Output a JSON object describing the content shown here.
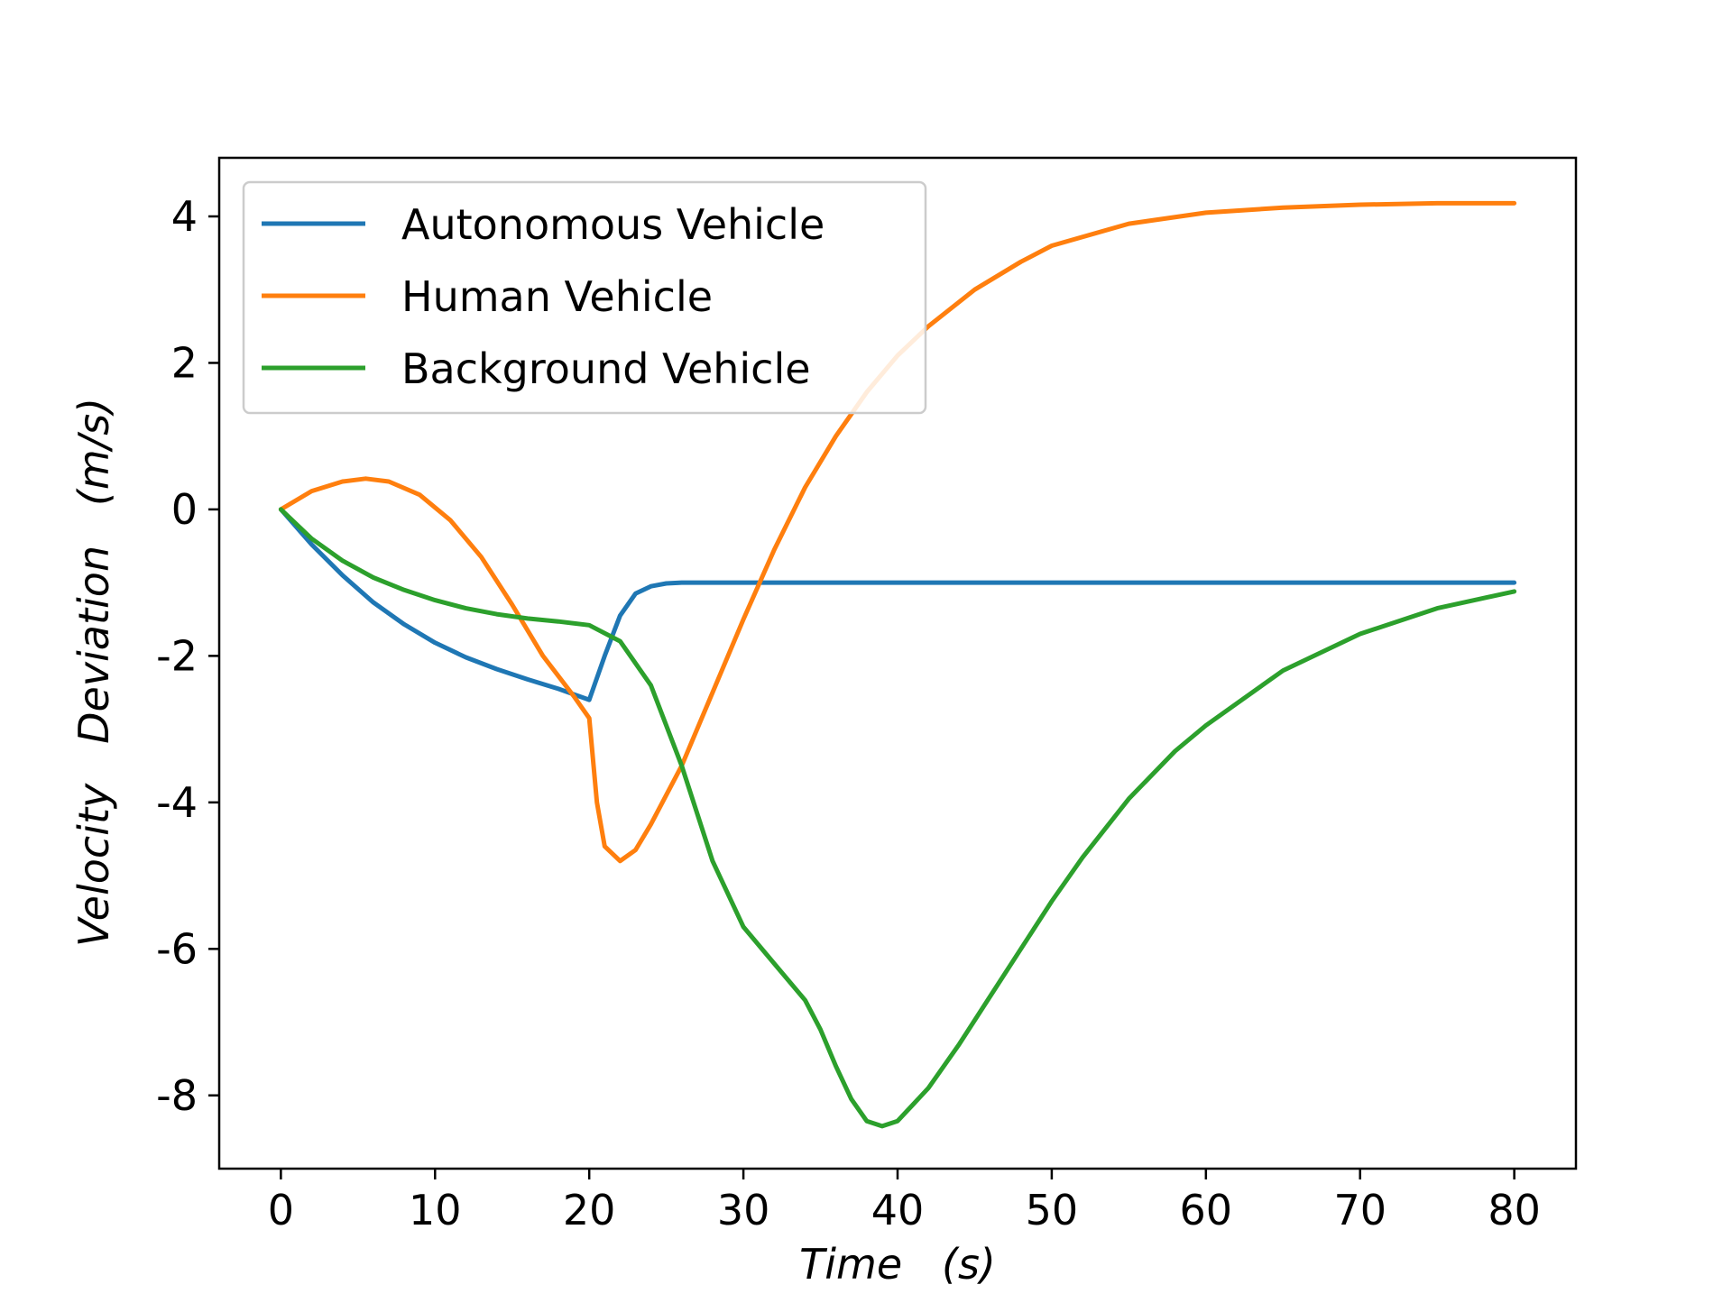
{
  "chart_data": {
    "type": "line",
    "xlabel": "Time   (s)",
    "ylabel": "Velocity   Deviation   (m/s)",
    "xlim": [
      -4,
      84
    ],
    "ylim": [
      -9.0,
      4.8
    ],
    "xticks": [
      0,
      10,
      20,
      30,
      40,
      50,
      60,
      70,
      80
    ],
    "xtick_labels": [
      "0",
      "10",
      "20",
      "30",
      "40",
      "50",
      "60",
      "70",
      "80"
    ],
    "yticks": [
      4,
      2,
      0,
      -2,
      -4,
      -6,
      -8
    ],
    "ytick_labels": [
      "4",
      "2",
      "0",
      "-2",
      "-4",
      "-6",
      "-8"
    ],
    "grid": false,
    "legend_position": "upper-left",
    "series": [
      {
        "name": "Autonomous Vehicle",
        "color": "#1f77b4",
        "x": [
          0,
          2,
          4,
          6,
          8,
          10,
          12,
          14,
          16,
          18,
          20,
          21,
          22,
          23,
          24,
          25,
          26,
          27,
          28,
          30,
          40,
          50,
          60,
          70,
          80
        ],
        "y": [
          0,
          -0.48,
          -0.9,
          -1.27,
          -1.57,
          -1.82,
          -2.02,
          -2.18,
          -2.32,
          -2.45,
          -2.6,
          -2.0,
          -1.45,
          -1.15,
          -1.05,
          -1.01,
          -1.0,
          -1.0,
          -1.0,
          -1.0,
          -1.0,
          -1.0,
          -1.0,
          -1.0,
          -1.0
        ]
      },
      {
        "name": "Human Vehicle",
        "color": "#ff7f0e",
        "x": [
          0,
          2,
          4,
          5.5,
          7,
          9,
          11,
          13,
          15,
          17,
          19,
          20,
          20.5,
          21,
          22,
          23,
          24,
          26,
          28,
          30,
          32,
          34,
          36,
          38,
          40,
          42,
          45,
          48,
          50,
          55,
          60,
          65,
          70,
          75,
          80
        ],
        "y": [
          0,
          0.25,
          0.38,
          0.42,
          0.38,
          0.2,
          -0.15,
          -0.65,
          -1.3,
          -2.0,
          -2.55,
          -2.85,
          -4.0,
          -4.6,
          -4.8,
          -4.65,
          -4.3,
          -3.5,
          -2.5,
          -1.5,
          -0.55,
          0.3,
          1.0,
          1.6,
          2.1,
          2.5,
          3.0,
          3.38,
          3.6,
          3.9,
          4.05,
          4.12,
          4.16,
          4.18,
          4.18
        ]
      },
      {
        "name": "Background Vehicle",
        "color": "#2ca02c",
        "x": [
          0,
          2,
          4,
          6,
          8,
          10,
          12,
          14,
          16,
          18,
          20,
          22,
          24,
          26,
          28,
          30,
          32,
          34,
          35,
          36,
          37,
          38,
          39,
          40,
          42,
          44,
          46,
          48,
          50,
          52,
          55,
          58,
          60,
          65,
          70,
          75,
          80
        ],
        "y": [
          0,
          -0.4,
          -0.7,
          -0.93,
          -1.1,
          -1.24,
          -1.35,
          -1.43,
          -1.49,
          -1.53,
          -1.58,
          -1.8,
          -2.4,
          -3.5,
          -4.8,
          -5.7,
          -6.2,
          -6.7,
          -7.1,
          -7.6,
          -8.05,
          -8.35,
          -8.42,
          -8.35,
          -7.9,
          -7.3,
          -6.65,
          -6.0,
          -5.35,
          -4.75,
          -3.95,
          -3.3,
          -2.95,
          -2.2,
          -1.7,
          -1.35,
          -1.12
        ]
      }
    ]
  }
}
